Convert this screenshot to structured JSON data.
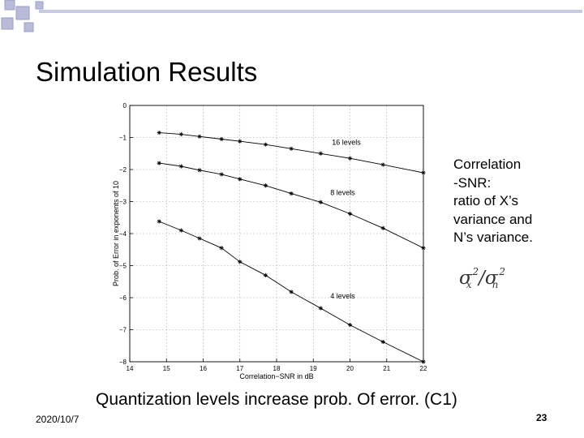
{
  "slide": {
    "title": "Simulation Results",
    "side_note": [
      "Correlation",
      "-SNR:",
      "ratio of X’s",
      "variance and",
      "N’s variance."
    ],
    "formula": "σx²/σn²",
    "caption": "Quantization levels increase prob. Of error. (C1)",
    "date": "2020/10/7",
    "page_number": "23",
    "colors": {
      "decor_square": "#b8bcd8",
      "decor_square_outline": "#9a9ec6",
      "decor_line": "#c8cae0"
    }
  },
  "chart_data": {
    "type": "line",
    "xlabel": "Correlation−SNR in dB",
    "ylabel": "Prob. of Error in exponents of 10",
    "xlim": [
      14,
      22
    ],
    "ylim": [
      -8,
      0
    ],
    "xticks": [
      14,
      15,
      16,
      17,
      18,
      19,
      20,
      21,
      22
    ],
    "yticks": [
      0,
      -1,
      -2,
      -3,
      -4,
      -5,
      -6,
      -7,
      -8
    ],
    "grid": true,
    "marker": "asterisk",
    "series": [
      {
        "name": "16 levels",
        "x": [
          14.8,
          15.4,
          15.9,
          16.5,
          17.0,
          17.7,
          18.4,
          19.2,
          20.0,
          20.9,
          22.0
        ],
        "values": [
          -0.85,
          -0.9,
          -0.97,
          -1.05,
          -1.12,
          -1.22,
          -1.35,
          -1.5,
          -1.65,
          -1.85,
          -2.1
        ]
      },
      {
        "name": "8 levels",
        "x": [
          14.8,
          15.4,
          15.9,
          16.5,
          17.0,
          17.7,
          18.4,
          19.2,
          20.0,
          20.9,
          22.0
        ],
        "values": [
          -1.8,
          -1.9,
          -2.02,
          -2.15,
          -2.3,
          -2.5,
          -2.75,
          -3.02,
          -3.38,
          -3.83,
          -4.45
        ]
      },
      {
        "name": "4 levels",
        "x": [
          14.8,
          15.4,
          15.9,
          16.5,
          17.0,
          17.7,
          18.4,
          19.2,
          20.0,
          20.9,
          22.0
        ],
        "values": [
          -3.62,
          -3.9,
          -4.15,
          -4.45,
          -4.88,
          -5.3,
          -5.82,
          -6.33,
          -6.85,
          -7.38,
          -8.0
        ]
      }
    ],
    "annotations": [
      {
        "text": "16 levels",
        "x": 19.9,
        "y": -1.15
      },
      {
        "text": "8 levels",
        "x": 19.8,
        "y": -2.72
      },
      {
        "text": "4 levels",
        "x": 19.8,
        "y": -5.95
      }
    ]
  }
}
